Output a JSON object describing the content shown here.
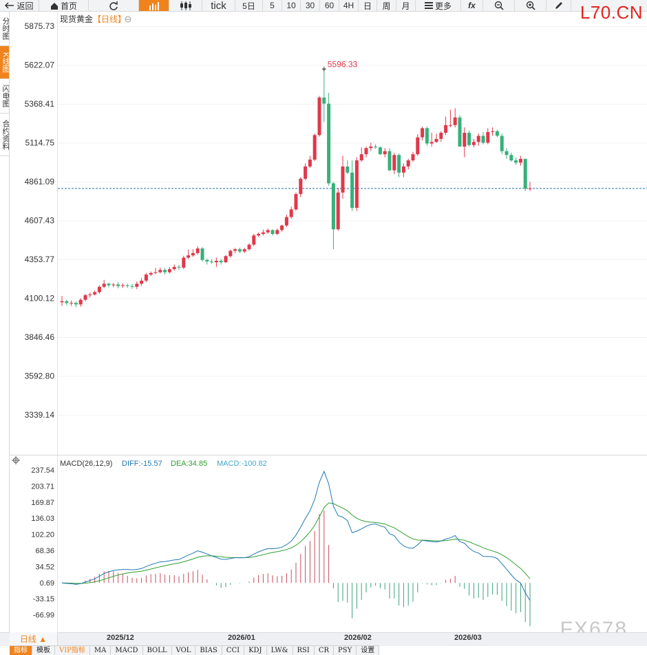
{
  "toolbar": {
    "back": "返回",
    "home": "首页",
    "tick": "tick",
    "intervals": [
      "5日",
      "5",
      "10",
      "30",
      "60",
      "4H",
      "日",
      "周",
      "月"
    ],
    "more": "更多",
    "fx": "fx"
  },
  "watermark": {
    "top": "L70.CN",
    "bottom": "FX678"
  },
  "sidetabs": [
    "分时图",
    "K线图",
    "闪电图",
    "合约资料"
  ],
  "instrument": {
    "name": "现货黄金",
    "period": "【日线】"
  },
  "price_axis": [
    "5875.73",
    "5622.07",
    "5368.41",
    "5114.75",
    "4861.09",
    "4607.43",
    "4353.77",
    "4100.12",
    "3846.46",
    "3592.80",
    "3339.14"
  ],
  "max_marker": "5596.33",
  "current_price": 4817,
  "colors": {
    "up": "#e0384b",
    "down": "#37b07a",
    "accent": "#f0831c",
    "diff": "#1f77b4",
    "dea": "#2ca02c"
  },
  "macd": {
    "title": "MACD(26,12,9)",
    "diff": "DIFF:-15.57",
    "dea": "DEA:34.85",
    "macd": "MACD:-100.82",
    "axis": [
      "237.54",
      "203.71",
      "169.87",
      "136.03",
      "102.20",
      "68.36",
      "34.52",
      "0.69",
      "-33.15",
      "-66.99"
    ]
  },
  "dates": [
    "2025/12",
    "2026/01",
    "2026/02",
    "2026/03"
  ],
  "period_button": "日线 ▲",
  "indicator_tabs": [
    "指标",
    "模板",
    "VIP指标",
    "MA",
    "MACD",
    "BOLL",
    "VOL",
    "BIAS",
    "CCI",
    "KDJ",
    "LW&",
    "RSI",
    "CR",
    "PSY",
    "设置"
  ],
  "chart_data": {
    "type": "candlestick",
    "title": "现货黄金【日线】",
    "ylim": [
      3339.14,
      5875.73
    ],
    "x_ticks": [
      "2025/12",
      "2026/01",
      "2026/02",
      "2026/03"
    ],
    "candles": [
      [
        4074,
        4081,
        4115,
        4050
      ],
      [
        4081,
        4069,
        4090,
        4055
      ],
      [
        4069,
        4070,
        4085,
        4050
      ],
      [
        4070,
        4060,
        4078,
        4042
      ],
      [
        4060,
        4090,
        4100,
        4045
      ],
      [
        4090,
        4120,
        4130,
        4080
      ],
      [
        4120,
        4125,
        4138,
        4105
      ],
      [
        4125,
        4140,
        4150,
        4118
      ],
      [
        4140,
        4175,
        4185,
        4130
      ],
      [
        4175,
        4195,
        4220,
        4165
      ],
      [
        4195,
        4185,
        4203,
        4170
      ],
      [
        4185,
        4190,
        4200,
        4172
      ],
      [
        4190,
        4180,
        4205,
        4165
      ],
      [
        4180,
        4185,
        4198,
        4168
      ],
      [
        4185,
        4180,
        4195,
        4168
      ],
      [
        4180,
        4175,
        4194,
        4162
      ],
      [
        4175,
        4195,
        4210,
        4160
      ],
      [
        4195,
        4215,
        4233,
        4180
      ],
      [
        4215,
        4255,
        4265,
        4205
      ],
      [
        4255,
        4265,
        4275,
        4245
      ],
      [
        4265,
        4270,
        4298,
        4258
      ],
      [
        4270,
        4285,
        4300,
        4262
      ],
      [
        4285,
        4270,
        4298,
        4255
      ],
      [
        4270,
        4290,
        4303,
        4262
      ],
      [
        4290,
        4305,
        4320,
        4280
      ],
      [
        4305,
        4300,
        4318,
        4285
      ],
      [
        4300,
        4365,
        4378,
        4290
      ],
      [
        4365,
        4380,
        4418,
        4355
      ],
      [
        4380,
        4395,
        4420,
        4370
      ],
      [
        4395,
        4425,
        4440,
        4385
      ],
      [
        4425,
        4350,
        4434,
        4340
      ],
      [
        4350,
        4340,
        4360,
        4320
      ],
      [
        4340,
        4335,
        4355,
        4325
      ],
      [
        4335,
        4345,
        4365,
        4305
      ],
      [
        4345,
        4335,
        4358,
        4320
      ],
      [
        4335,
        4375,
        4382,
        4330
      ],
      [
        4375,
        4410,
        4418,
        4365
      ],
      [
        4410,
        4420,
        4428,
        4395
      ],
      [
        4420,
        4405,
        4430,
        4395
      ],
      [
        4405,
        4420,
        4430,
        4395
      ],
      [
        4420,
        4450,
        4458,
        4410
      ],
      [
        4450,
        4510,
        4520,
        4440
      ],
      [
        4510,
        4520,
        4530,
        4500
      ],
      [
        4520,
        4530,
        4548,
        4510
      ],
      [
        4530,
        4545,
        4555,
        4520
      ],
      [
        4545,
        4520,
        4550,
        4510
      ],
      [
        4520,
        4545,
        4555,
        4513
      ],
      [
        4545,
        4575,
        4580,
        4535
      ],
      [
        4575,
        4630,
        4645,
        4565
      ],
      [
        4630,
        4680,
        4698,
        4620
      ],
      [
        4680,
        4780,
        4790,
        4670
      ],
      [
        4780,
        4880,
        4890,
        4760
      ],
      [
        4880,
        4960,
        4980,
        4870
      ],
      [
        4960,
        5005,
        5030,
        4950
      ],
      [
        5005,
        5165,
        5175,
        4995
      ],
      [
        5165,
        5410,
        5420,
        5155
      ],
      [
        5410,
        5370,
        5596,
        5250
      ],
      [
        5370,
        4850,
        5440,
        4835
      ],
      [
        4850,
        4550,
        4860,
        4420
      ],
      [
        4550,
        4790,
        4820,
        4540
      ],
      [
        4790,
        4960,
        5030,
        4750
      ],
      [
        4960,
        4920,
        5000,
        4910
      ],
      [
        4920,
        4690,
        5000,
        4670
      ],
      [
        4690,
        5000,
        5020,
        4670
      ],
      [
        5000,
        5040,
        5085,
        4990
      ],
      [
        5040,
        5080,
        5090,
        5020
      ],
      [
        5080,
        5090,
        5115,
        5060
      ],
      [
        5090,
        5085,
        5105,
        5075
      ],
      [
        5085,
        5040,
        5090,
        5035
      ],
      [
        5040,
        5060,
        5080,
        5020
      ],
      [
        5060,
        4935,
        5080,
        4930
      ],
      [
        4935,
        5035,
        5050,
        4910
      ],
      [
        5035,
        4920,
        5045,
        4890
      ],
      [
        4920,
        4960,
        4980,
        4890
      ],
      [
        4960,
        5000,
        5010,
        4940
      ],
      [
        5000,
        5040,
        5055,
        4990
      ],
      [
        5040,
        5150,
        5170,
        5030
      ],
      [
        5150,
        5210,
        5220,
        5130
      ],
      [
        5210,
        5110,
        5220,
        5095
      ],
      [
        5110,
        5120,
        5180,
        5090
      ],
      [
        5120,
        5140,
        5175,
        5115
      ],
      [
        5140,
        5180,
        5190,
        5120
      ],
      [
        5180,
        5230,
        5285,
        5165
      ],
      [
        5230,
        5230,
        5330,
        5215
      ],
      [
        5230,
        5280,
        5340,
        5215
      ],
      [
        5280,
        5090,
        5295,
        5090
      ],
      [
        5090,
        5180,
        5215,
        5020
      ],
      [
        5180,
        5100,
        5195,
        5090
      ],
      [
        5100,
        5120,
        5140,
        5085
      ],
      [
        5120,
        5160,
        5175,
        5095
      ],
      [
        5160,
        5115,
        5185,
        5105
      ],
      [
        5115,
        5185,
        5210,
        5105
      ],
      [
        5185,
        5190,
        5215,
        5160
      ],
      [
        5190,
        5160,
        5200,
        5150
      ],
      [
        5160,
        5060,
        5175,
        5040
      ],
      [
        5060,
        5035,
        5080,
        5010
      ],
      [
        5035,
        5000,
        5050,
        4990
      ],
      [
        5000,
        4985,
        5020,
        4970
      ],
      [
        4985,
        5010,
        5030,
        4965
      ],
      [
        5010,
        4815,
        5010,
        4800
      ],
      [
        4815,
        4817,
        4860,
        4800
      ]
    ]
  }
}
